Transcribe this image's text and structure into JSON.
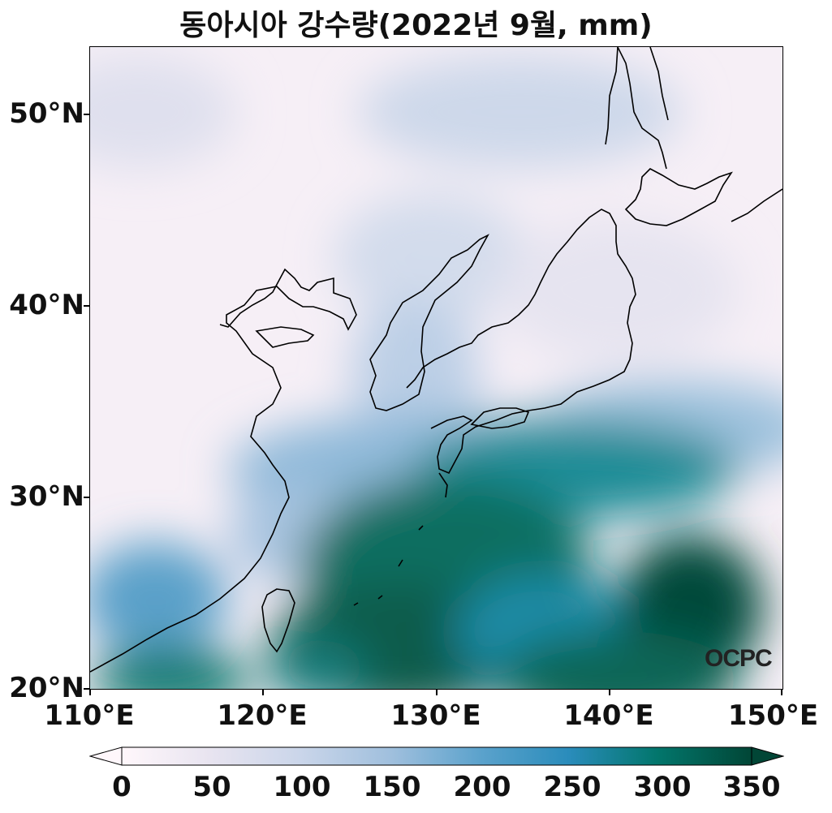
{
  "title": "동아시아 강수량(2022년 9월, mm)",
  "watermark": "OCPC",
  "map": {
    "lon_range": [
      110,
      150
    ],
    "lat_range": [
      20,
      53.5
    ],
    "x_ticks": [
      "110°E",
      "120°E",
      "130°E",
      "140°E",
      "150°E"
    ],
    "y_ticks": [
      "20°N",
      "30°N",
      "40°N",
      "50°N"
    ],
    "colormap": [
      "#fff7fb",
      "#e4e2ef",
      "#b4c6e0",
      "#74a9cf",
      "#2c8fbc",
      "#02818a",
      "#016c59",
      "#014636"
    ]
  },
  "colorbar": {
    "ticks": [
      "0",
      "50",
      "100",
      "150",
      "200",
      "250",
      "300",
      "350"
    ],
    "range": [
      0,
      350
    ],
    "extend": "both"
  }
}
